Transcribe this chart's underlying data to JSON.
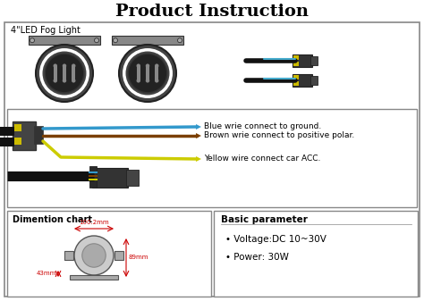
{
  "title": "Product Instruction",
  "title_fontsize": 14,
  "title_fontweight": "bold",
  "bg_color": "#ffffff",
  "section1_label": "4\"LED Fog Light",
  "wire_labels": [
    {
      "text": "Blue wrie connect to ground.",
      "color": "#3399ff"
    },
    {
      "text": "Brown wrie connect to positive polar.",
      "color": "#7B3F00"
    },
    {
      "text": "Yellow wire connect car ACC.",
      "color": "#cccc00"
    }
  ],
  "dim_title": "Dimention chart",
  "dim_measurements": [
    {
      "label": "100.2mm",
      "color": "#cc0000"
    },
    {
      "label": "89mm",
      "color": "#cc0000"
    },
    {
      "label": "43mm",
      "color": "#cc0000"
    }
  ],
  "param_title": "Basic parameter",
  "param_items": [
    "Voltage:DC 10~30V",
    "Power: 30W"
  ]
}
